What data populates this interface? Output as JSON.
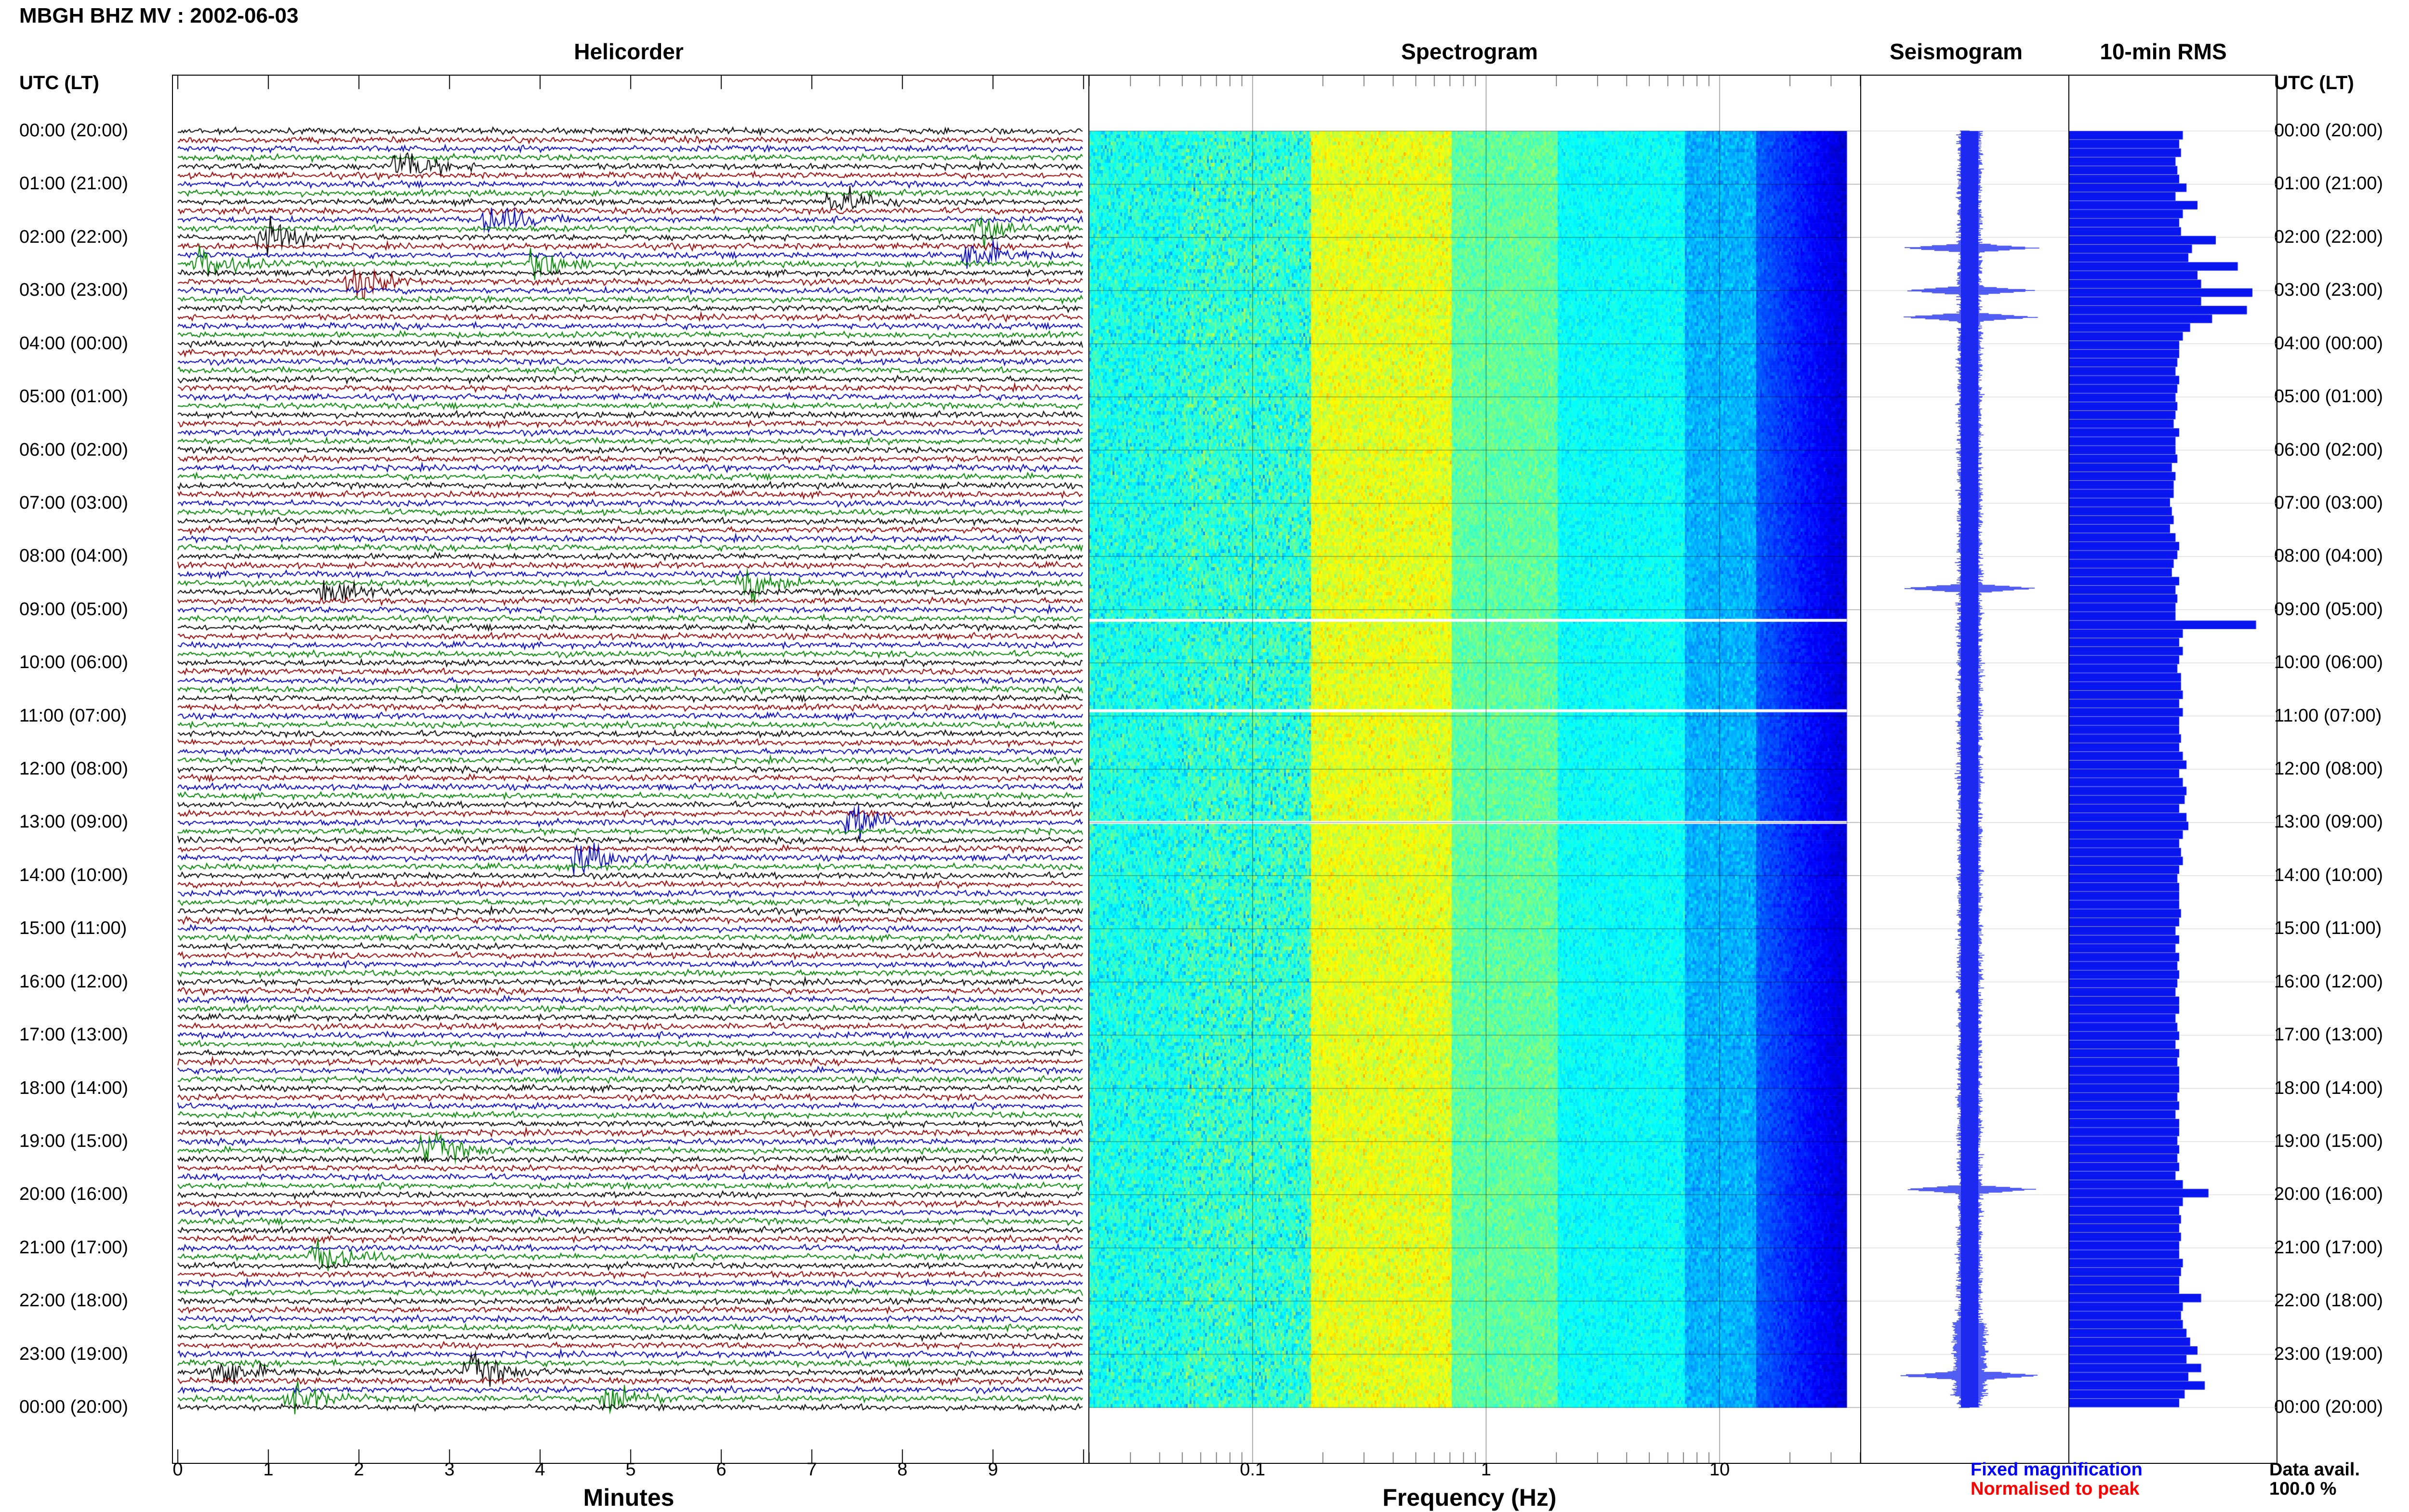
{
  "header": {
    "title": "MBGH BHZ MV : 2002-06-03",
    "utc_label_left": "UTC (LT)",
    "utc_label_right": "UTC (LT)"
  },
  "panels": {
    "helicorder": "Helicorder",
    "spectrogram": "Spectrogram",
    "seismogram": "Seismogram",
    "rms": "10-min RMS"
  },
  "time_labels": [
    "00:00 (20:00)",
    "01:00 (21:00)",
    "02:00 (22:00)",
    "03:00 (23:00)",
    "04:00 (00:00)",
    "05:00 (01:00)",
    "06:00 (02:00)",
    "07:00 (03:00)",
    "08:00 (04:00)",
    "09:00 (05:00)",
    "10:00 (06:00)",
    "11:00 (07:00)",
    "12:00 (08:00)",
    "13:00 (09:00)",
    "14:00 (10:00)",
    "15:00 (11:00)",
    "16:00 (12:00)",
    "17:00 (13:00)",
    "18:00 (14:00)",
    "19:00 (15:00)",
    "20:00 (16:00)",
    "21:00 (17:00)",
    "22:00 (18:00)",
    "23:00 (19:00)",
    "00:00 (20:00)"
  ],
  "footer": {
    "fixed_magnification": "Fixed magnification",
    "normalised_to_peak": "Normalised to peak",
    "data_avail_label": "Data avail.",
    "data_avail_value": "100.0 %"
  },
  "colors": {
    "trace_cycle": [
      "#000000",
      "#8b0000",
      "#0000b0",
      "#008000"
    ],
    "fixed_magnification": "#0000ff",
    "normalised_to_peak": "#ff0000",
    "rms_bar": "#0a16f0",
    "seismogram": "#1a28f0"
  },
  "chart_data": [
    {
      "type": "line",
      "title": "Helicorder",
      "xlabel": "Minutes",
      "x_ticks": [
        "0",
        "1",
        "2",
        "3",
        "4",
        "5",
        "6",
        "7",
        "8",
        "9"
      ],
      "xlim": [
        0,
        10
      ],
      "traces_per_hour": 6,
      "hours": 24,
      "events": [
        {
          "trace": 4,
          "minute": 2.5,
          "color_index": 0
        },
        {
          "trace": 8,
          "minute": 7.3,
          "color_index": 1
        },
        {
          "trace": 10,
          "minute": 3.5,
          "color_index": 3
        },
        {
          "trace": 11,
          "minute": 8.9,
          "color_index": 0
        },
        {
          "trace": 12,
          "minute": 1.0,
          "color_index": 2
        },
        {
          "trace": 14,
          "minute": 8.8,
          "color_index": 0
        },
        {
          "trace": 15,
          "minute": 0.3,
          "color_index": 1
        },
        {
          "trace": 15,
          "minute": 4.0,
          "color_index": 1
        },
        {
          "trace": 17,
          "minute": 2.0,
          "color_index": 3
        },
        {
          "trace": 52,
          "minute": 1.7,
          "color_index": 3
        },
        {
          "trace": 51,
          "minute": 6.3,
          "color_index": 2
        },
        {
          "trace": 78,
          "minute": 7.5,
          "color_index": 2
        },
        {
          "trace": 82,
          "minute": 4.5,
          "color_index": 1
        },
        {
          "trace": 115,
          "minute": 2.8,
          "color_index": 2
        },
        {
          "trace": 127,
          "minute": 1.6,
          "color_index": 0
        },
        {
          "trace": 140,
          "minute": 0.5,
          "color_index": 3
        },
        {
          "trace": 140,
          "minute": 3.3,
          "color_index": 3
        },
        {
          "trace": 143,
          "minute": 4.8,
          "color_index": 0
        },
        {
          "trace": 143,
          "minute": 1.3,
          "color_index": 1
        }
      ]
    },
    {
      "type": "heatmap",
      "title": "Spectrogram",
      "xlabel": "Frequency (Hz)",
      "x_scale": "log",
      "xlim": [
        0.02,
        40
      ],
      "x_ticks": [
        "0.1",
        "1",
        "10"
      ],
      "x_tick_values": [
        0.1,
        1,
        10
      ],
      "gaps_hours": [
        9.2,
        10.9,
        13.0
      ]
    },
    {
      "type": "line",
      "title": "Seismogram",
      "spikes_hours": [
        2.2,
        3.0,
        3.5,
        8.6,
        19.9,
        23.4
      ]
    },
    {
      "type": "bar",
      "title": "10-min RMS",
      "values": [
        0.62,
        0.6,
        0.61,
        0.58,
        0.59,
        0.6,
        0.64,
        0.58,
        0.7,
        0.62,
        0.6,
        0.61,
        0.8,
        0.67,
        0.65,
        0.92,
        0.7,
        0.72,
        1.0,
        0.72,
        0.97,
        0.78,
        0.66,
        0.62,
        0.6,
        0.6,
        0.59,
        0.58,
        0.6,
        0.59,
        0.58,
        0.59,
        0.58,
        0.57,
        0.6,
        0.58,
        0.58,
        0.59,
        0.56,
        0.58,
        0.57,
        0.57,
        0.55,
        0.56,
        0.57,
        0.55,
        0.58,
        0.6,
        0.59,
        0.57,
        0.56,
        0.6,
        0.58,
        0.59,
        0.58,
        0.58,
        1.02,
        0.62,
        0.6,
        0.62,
        0.6,
        0.59,
        0.61,
        0.61,
        0.62,
        0.6,
        0.62,
        0.6,
        0.6,
        0.61,
        0.6,
        0.62,
        0.64,
        0.6,
        0.62,
        0.64,
        0.63,
        0.6,
        0.64,
        0.65,
        0.62,
        0.6,
        0.61,
        0.62,
        0.6,
        0.59,
        0.6,
        0.6,
        0.6,
        0.61,
        0.6,
        0.58,
        0.6,
        0.58,
        0.6,
        0.59,
        0.6,
        0.59,
        0.58,
        0.6,
        0.6,
        0.58,
        0.59,
        0.6,
        0.58,
        0.6,
        0.59,
        0.6,
        0.6,
        0.6,
        0.59,
        0.6,
        0.58,
        0.6,
        0.6,
        0.59,
        0.6,
        0.59,
        0.6,
        0.58,
        0.62,
        0.76,
        0.62,
        0.6,
        0.61,
        0.6,
        0.61,
        0.6,
        0.6,
        0.62,
        0.61,
        0.6,
        0.6,
        0.72,
        0.62,
        0.61,
        0.62,
        0.64,
        0.66,
        0.7,
        0.64,
        0.72,
        0.65,
        0.74,
        0.63,
        0.6
      ]
    }
  ]
}
